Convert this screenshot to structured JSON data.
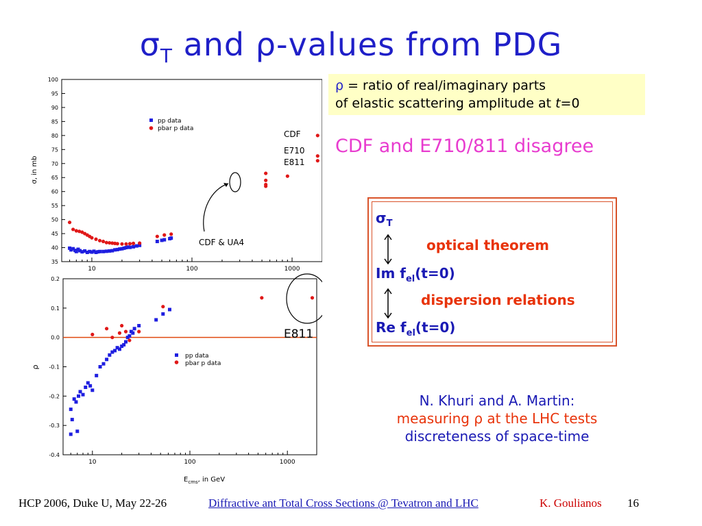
{
  "title": {
    "sigma": "σ",
    "sub": "T",
    "rest": " and ",
    "rho": "ρ",
    "rest2": "-values from PDG"
  },
  "rho_box": {
    "line1_sym": "ρ",
    "line1": " =  ratio of real/imaginary parts",
    "line2": "of elastic scattering amplitude at ",
    "line2_t": "t",
    "line2_end": "=0"
  },
  "disagree": "CDF and E710/811 disagree",
  "theorem": {
    "sigma": "σ",
    "sigma_sub": "T",
    "optical": "optical theorem",
    "im": "Im f",
    "im_sub": "el",
    "im_end": "(t=0)",
    "dispersion": "dispersion relations",
    "re": "Re f",
    "re_sub": "el",
    "re_end": "(t=0)"
  },
  "khuri": {
    "line1": "N. Khuri and A. Martin:",
    "line2a": "measuring ",
    "line2_sym": "ρ",
    "line2b": " at the LHC tests",
    "line3": "discreteness of space-time"
  },
  "footer": {
    "conf": "HCP 2006, Duke U, May 22-26",
    "link": "Diffractive ant Total Cross Sections @ Tevatron and LHC",
    "author": "K. Goulianos",
    "page": "16"
  },
  "colors": {
    "title": "#1f1fc8",
    "pp": "#1f1fe0",
    "pbar": "#e01818",
    "pink": "#e83ccf",
    "orange": "#d9532a"
  },
  "chart_data": [
    {
      "type": "scatter",
      "xscale": "log",
      "xlim": [
        5,
        2000
      ],
      "ylim": [
        35,
        100
      ],
      "ylabel": "σ, in mb",
      "yticks": [
        35,
        40,
        45,
        50,
        55,
        60,
        65,
        70,
        75,
        80,
        85,
        90,
        95,
        100
      ],
      "xticks": [
        10,
        100,
        1000
      ],
      "legend": {
        "placement": "upper-left",
        "entries": [
          "pp data",
          "pbar p data"
        ]
      },
      "annotations": {
        "cdf": "CDF",
        "e710": "E710",
        "e811": "E811",
        "cdf_ua4": "CDF & UA4"
      },
      "series": [
        {
          "key": "pp",
          "points": [
            [
              6,
              39.8
            ],
            [
              6.2,
              39.2
            ],
            [
              6.5,
              39.6
            ],
            [
              6.8,
              39.0
            ],
            [
              7,
              38.6
            ],
            [
              7.3,
              39.4
            ],
            [
              7.6,
              38.9
            ],
            [
              8,
              38.5
            ],
            [
              8.5,
              38.8
            ],
            [
              9,
              38.3
            ],
            [
              9.5,
              38.6
            ],
            [
              10,
              38.4
            ],
            [
              10.5,
              38.7
            ],
            [
              11,
              38.3
            ],
            [
              11.5,
              38.5
            ],
            [
              12,
              38.6
            ],
            [
              13,
              38.6
            ],
            [
              14,
              38.7
            ],
            [
              15,
              38.8
            ],
            [
              16,
              38.9
            ],
            [
              17,
              39.2
            ],
            [
              18,
              39.3
            ],
            [
              19,
              39.5
            ],
            [
              20,
              39.6
            ],
            [
              21,
              39.8
            ],
            [
              22,
              40.0
            ],
            [
              23,
              40.2
            ],
            [
              24,
              40.1
            ],
            [
              26,
              40.3
            ],
            [
              28,
              40.6
            ],
            [
              30,
              40.8
            ],
            [
              45,
              42.2
            ],
            [
              50,
              42.6
            ],
            [
              53,
              42.8
            ],
            [
              60,
              43.2
            ],
            [
              62,
              43.4
            ]
          ]
        },
        {
          "key": "pbar",
          "points": [
            [
              6,
              49.0
            ],
            [
              6.5,
              46.5
            ],
            [
              7,
              46.0
            ],
            [
              7.5,
              45.8
            ],
            [
              8,
              45.5
            ],
            [
              8.5,
              45.0
            ],
            [
              9,
              44.5
            ],
            [
              9.5,
              44.0
            ],
            [
              10,
              43.5
            ],
            [
              11,
              43.0
            ],
            [
              12,
              42.5
            ],
            [
              13,
              42.2
            ],
            [
              14,
              41.8
            ],
            [
              15,
              41.7
            ],
            [
              16,
              41.6
            ],
            [
              17,
              41.5
            ],
            [
              18,
              41.4
            ],
            [
              20,
              41.3
            ],
            [
              22,
              41.3
            ],
            [
              24,
              41.4
            ],
            [
              26,
              41.5
            ],
            [
              30,
              41.6
            ],
            [
              45,
              44.0
            ],
            [
              53,
              44.5
            ],
            [
              62,
              44.8
            ],
            [
              546,
              61.9
            ],
            [
              546,
              62.5
            ],
            [
              546,
              64.0
            ],
            [
              546,
              66.5
            ],
            [
              900,
              65.5
            ],
            [
              1800,
              71.0
            ],
            [
              1800,
              72.7
            ],
            [
              1800,
              80.0
            ]
          ]
        }
      ]
    },
    {
      "type": "scatter",
      "xscale": "log",
      "xlim": [
        5,
        2000
      ],
      "ylim": [
        -0.4,
        0.2
      ],
      "ylabel": "ρ",
      "xlabel": "E",
      "xlabel_sub": "cms",
      "xlabel_end": ", in GeV",
      "yticks": [
        -0.4,
        -0.3,
        -0.2,
        -0.1,
        0.0,
        0.1,
        0.2
      ],
      "xticks": [
        10,
        100,
        1000
      ],
      "legend": {
        "placement": "center",
        "entries": [
          "pp         data",
          "pbar p data"
        ]
      },
      "annotations": {
        "e811": "E811"
      },
      "reference_line": 0.0,
      "series": [
        {
          "key": "pp",
          "points": [
            [
              6,
              -0.33
            ],
            [
              6,
              -0.245
            ],
            [
              6.2,
              -0.28
            ],
            [
              6.5,
              -0.21
            ],
            [
              6.8,
              -0.22
            ],
            [
              7,
              -0.32
            ],
            [
              7.2,
              -0.2
            ],
            [
              7.5,
              -0.185
            ],
            [
              8,
              -0.195
            ],
            [
              8.5,
              -0.17
            ],
            [
              9,
              -0.155
            ],
            [
              9.5,
              -0.165
            ],
            [
              10,
              -0.18
            ],
            [
              11,
              -0.13
            ],
            [
              12,
              -0.1
            ],
            [
              13,
              -0.09
            ],
            [
              14,
              -0.075
            ],
            [
              15,
              -0.06
            ],
            [
              16,
              -0.05
            ],
            [
              17,
              -0.045
            ],
            [
              18,
              -0.035
            ],
            [
              19,
              -0.04
            ],
            [
              20,
              -0.03
            ],
            [
              21,
              -0.025
            ],
            [
              22,
              -0.015
            ],
            [
              23,
              0.0
            ],
            [
              24,
              0.005
            ],
            [
              25,
              0.02
            ],
            [
              26,
              0.015
            ],
            [
              27,
              0.03
            ],
            [
              30,
              0.04
            ],
            [
              45,
              0.06
            ],
            [
              53,
              0.08
            ],
            [
              62,
              0.095
            ]
          ]
        },
        {
          "key": "pbar",
          "points": [
            [
              10,
              0.01
            ],
            [
              14,
              0.03
            ],
            [
              16,
              0.0
            ],
            [
              19,
              0.015
            ],
            [
              20,
              0.04
            ],
            [
              22,
              0.02
            ],
            [
              24,
              -0.01
            ],
            [
              30,
              0.02
            ],
            [
              53,
              0.105
            ],
            [
              546,
              0.135
            ],
            [
              1800,
              0.135
            ]
          ]
        }
      ]
    }
  ]
}
